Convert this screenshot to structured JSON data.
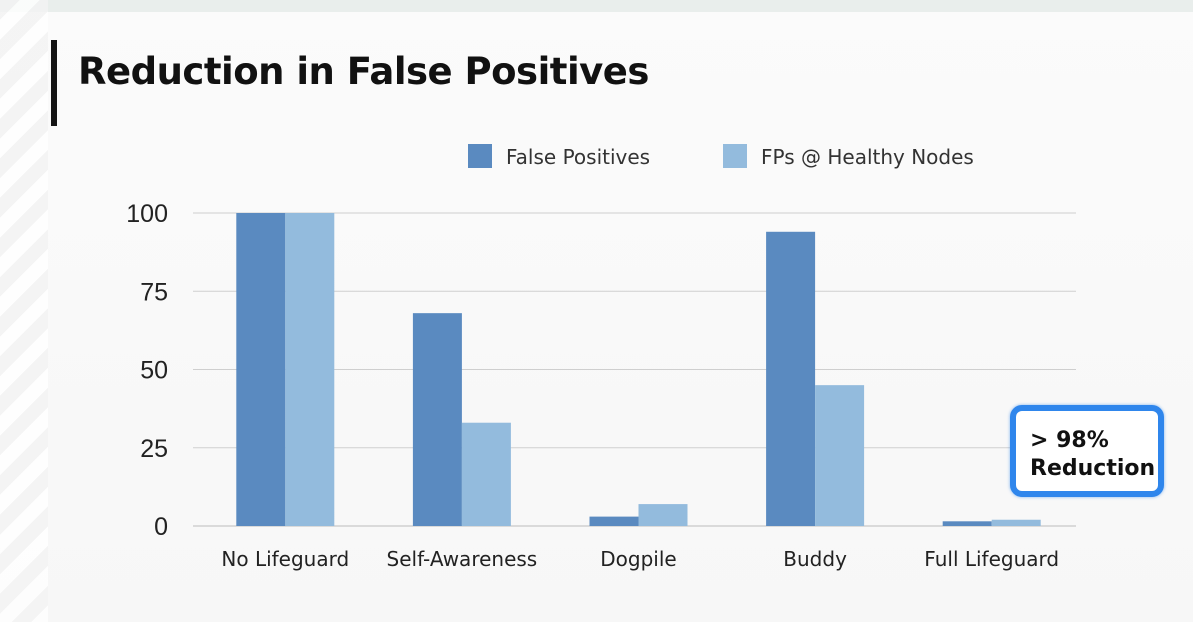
{
  "slide": {
    "title": "Reduction in False Positives",
    "callout": {
      "line1": "> 98%",
      "line2": "Reduction"
    }
  },
  "colors": {
    "false_positives": "#5a8ac0",
    "fps_healthy_nodes": "#93bbdd",
    "callout_border": "#2f86ec",
    "gridline": "#cfcfcf"
  },
  "chart_data": {
    "type": "bar",
    "title": "Reduction in False Positives",
    "categories": [
      "No Lifeguard",
      "Self-Awareness",
      "Dogpile",
      "Buddy",
      "Full Lifeguard"
    ],
    "series": [
      {
        "name": "False Positives",
        "values": [
          100,
          68,
          3,
          94,
          1.5
        ]
      },
      {
        "name": "FPs @ Healthy Nodes",
        "values": [
          100,
          33,
          7,
          45,
          2
        ]
      }
    ],
    "yticks": [
      0,
      25,
      50,
      75,
      100
    ],
    "ylim": [
      0,
      100
    ],
    "xlabel": "",
    "ylabel": "",
    "grid": true,
    "legend": "top-center"
  }
}
